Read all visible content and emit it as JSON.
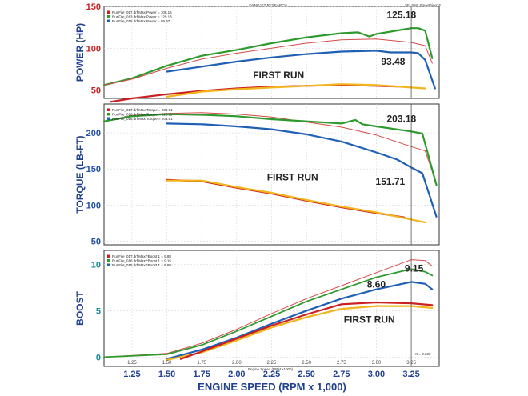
{
  "header": {
    "title": "DYNOJET RESEARCH",
    "right": "SF: SAE   Smoothing: 5"
  },
  "xaxis": {
    "label": "ENGINE SPEED (RPM x 1,000)",
    "inner_label": "Engine Speed (RPM x1000)",
    "ticks": [
      "1.25",
      "1.50",
      "1.75",
      "2.00",
      "2.25",
      "2.50",
      "2.75",
      "3.00",
      "3.25"
    ],
    "range": [
      1.05,
      3.45
    ],
    "cursor": 3.25,
    "cursor_readout": "X = 3.236"
  },
  "colors": {
    "green": "#2e9a2e",
    "blue": "#1f5fb4",
    "red": "#cc1f1f",
    "yellow": "#f2b51f",
    "thin_red": "#d24a4a",
    "cursor": "#555555"
  },
  "chart_data": [
    {
      "type": "line",
      "name": "power",
      "ylabel": "POWER (HP)",
      "yticks": [
        "150",
        "100",
        "50"
      ],
      "inner_tick_colors": "red",
      "ylim": [
        40,
        150
      ],
      "legend": [
        "RunFile_017.drf Max Power = 108.16",
        "RunFile_013.drf Max Power = 125.13",
        "RunFile_015.drf Max Power = 99.97"
      ],
      "annotations": [
        {
          "text": "125.18",
          "x": 3.18,
          "y": 136
        },
        {
          "text": "93.48",
          "x": 3.12,
          "y": 80
        },
        {
          "text": "FIRST RUN",
          "x": 2.3,
          "y": 64
        }
      ],
      "series": [
        {
          "color": "green",
          "width": 2.2,
          "points": [
            [
              1.05,
              56
            ],
            [
              1.25,
              64
            ],
            [
              1.5,
              79
            ],
            [
              1.75,
              91
            ],
            [
              2.0,
              98
            ],
            [
              2.25,
              106
            ],
            [
              2.5,
              113
            ],
            [
              2.75,
              118
            ],
            [
              2.87,
              119
            ],
            [
              2.95,
              114
            ],
            [
              3.0,
              117
            ],
            [
              3.25,
              124
            ],
            [
              3.3,
              124
            ],
            [
              3.35,
              121
            ],
            [
              3.4,
              88
            ]
          ]
        },
        {
          "color": "thin_red",
          "width": 1,
          "points": [
            [
              1.05,
              56
            ],
            [
              1.25,
              63
            ],
            [
              1.5,
              76
            ],
            [
              1.75,
              87
            ],
            [
              2.0,
              94
            ],
            [
              2.25,
              100
            ],
            [
              2.5,
              106
            ],
            [
              2.75,
              110
            ],
            [
              3.0,
              111
            ],
            [
              3.25,
              107
            ],
            [
              3.35,
              103
            ],
            [
              3.4,
              82
            ]
          ]
        },
        {
          "color": "blue",
          "width": 2.2,
          "points": [
            [
              1.5,
              72
            ],
            [
              1.75,
              78
            ],
            [
              2.0,
              84
            ],
            [
              2.25,
              89
            ],
            [
              2.5,
              93
            ],
            [
              2.75,
              96
            ],
            [
              3.0,
              97
            ],
            [
              3.1,
              95
            ],
            [
              3.25,
              95
            ],
            [
              3.3,
              94
            ],
            [
              3.35,
              86
            ],
            [
              3.42,
              52
            ]
          ]
        },
        {
          "color": "red",
          "width": 2.2,
          "points": [
            [
              1.1,
              36
            ],
            [
              1.25,
              40
            ],
            [
              1.5,
              45
            ],
            [
              1.75,
              49
            ],
            [
              2.0,
              52
            ],
            [
              2.25,
              54
            ],
            [
              2.5,
              55
            ],
            [
              2.75,
              56
            ],
            [
              3.0,
              55
            ],
            [
              3.2,
              54
            ]
          ]
        },
        {
          "color": "yellow",
          "width": 2.2,
          "points": [
            [
              1.5,
              42
            ],
            [
              1.75,
              48
            ],
            [
              2.0,
              51
            ],
            [
              2.25,
              53
            ],
            [
              2.5,
              55
            ],
            [
              2.75,
              57
            ],
            [
              3.0,
              56
            ],
            [
              3.25,
              53
            ],
            [
              3.35,
              52
            ]
          ]
        }
      ]
    },
    {
      "type": "line",
      "name": "torque",
      "ylabel": "TORQUE (LB-FT)",
      "yticks": [
        "200",
        "150",
        "100",
        "50"
      ],
      "ylim": [
        45,
        240
      ],
      "legend": [
        "RunFile_017.drf Max Torque = 230.81",
        "RunFile_016.drf Max Torque = 225.11",
        "RunFile_015.drf Max Torque = 201.61"
      ],
      "annotations": [
        {
          "text": "203.18",
          "x": 3.18,
          "y": 215
        },
        {
          "text": "151.71",
          "x": 3.1,
          "y": 128
        },
        {
          "text": "FIRST RUN",
          "x": 2.4,
          "y": 134
        }
      ],
      "series": [
        {
          "color": "thin_red",
          "width": 1,
          "points": [
            [
              1.05,
              216
            ],
            [
              1.25,
              224
            ],
            [
              1.5,
              227
            ],
            [
              1.75,
              228
            ],
            [
              2.0,
              226
            ],
            [
              2.25,
              222
            ],
            [
              2.5,
              215
            ],
            [
              2.75,
              208
            ],
            [
              3.0,
              197
            ],
            [
              3.25,
              181
            ],
            [
              3.35,
              175
            ],
            [
              3.42,
              136
            ]
          ]
        },
        {
          "color": "green",
          "width": 2.2,
          "points": [
            [
              1.05,
              216
            ],
            [
              1.25,
              223
            ],
            [
              1.5,
              226
            ],
            [
              1.75,
              225
            ],
            [
              2.0,
              223
            ],
            [
              2.25,
              219
            ],
            [
              2.5,
              216
            ],
            [
              2.75,
              213
            ],
            [
              2.85,
              218
            ],
            [
              2.9,
              212
            ],
            [
              3.0,
              209
            ],
            [
              3.25,
              202
            ],
            [
              3.33,
              199
            ],
            [
              3.43,
              128
            ]
          ]
        },
        {
          "color": "blue",
          "width": 2.2,
          "points": [
            [
              1.5,
              213
            ],
            [
              1.75,
              212
            ],
            [
              2.0,
              209
            ],
            [
              2.25,
              205
            ],
            [
              2.5,
              198
            ],
            [
              2.75,
              188
            ],
            [
              3.0,
              173
            ],
            [
              3.15,
              163
            ],
            [
              3.25,
              152
            ],
            [
              3.33,
              144
            ],
            [
              3.43,
              84
            ]
          ]
        },
        {
          "color": "red",
          "width": 2.2,
          "points": [
            [
              1.5,
              135
            ],
            [
              1.75,
              133
            ],
            [
              2.0,
              124
            ],
            [
              2.25,
              116
            ],
            [
              2.5,
              106
            ],
            [
              2.75,
              97
            ],
            [
              3.0,
              89
            ],
            [
              3.2,
              83
            ]
          ]
        },
        {
          "color": "yellow",
          "width": 2.2,
          "points": [
            [
              1.5,
              134
            ],
            [
              1.75,
              134
            ],
            [
              2.0,
              125
            ],
            [
              2.25,
              117
            ],
            [
              2.5,
              107
            ],
            [
              2.75,
              98
            ],
            [
              3.0,
              90
            ],
            [
              3.25,
              80
            ],
            [
              3.35,
              76
            ]
          ]
        }
      ]
    },
    {
      "type": "line",
      "name": "boost",
      "ylabel": "BOOST",
      "yticks": [
        "10",
        "5",
        "0"
      ],
      "ylim": [
        -1,
        11.5
      ],
      "legend": [
        "RunFile_017.drf Max *Boost 1 = 9.88",
        "RunFile_016.drf Max *Boost 1 = 9.15",
        "RunFile_015.drf Max *Boost 1 = 8.60"
      ],
      "annotations": [
        {
          "text": "9.15",
          "x": 3.27,
          "y": 9.2
        },
        {
          "text": "8.60",
          "x": 3.0,
          "y": 7.5
        },
        {
          "text": "FIRST RUN",
          "x": 2.95,
          "y": 3.7
        }
      ],
      "series": [
        {
          "color": "thin_red",
          "width": 1,
          "points": [
            [
              1.05,
              0
            ],
            [
              1.5,
              0.4
            ],
            [
              1.75,
              1.5
            ],
            [
              2.0,
              3.0
            ],
            [
              2.25,
              4.7
            ],
            [
              2.5,
              6.3
            ],
            [
              2.75,
              7.7
            ],
            [
              3.0,
              9.1
            ],
            [
              3.25,
              10.5
            ],
            [
              3.35,
              10.4
            ],
            [
              3.4,
              9.8
            ]
          ]
        },
        {
          "color": "green",
          "width": 1.8,
          "points": [
            [
              1.05,
              0
            ],
            [
              1.5,
              0.3
            ],
            [
              1.75,
              1.3
            ],
            [
              2.0,
              2.8
            ],
            [
              2.25,
              4.4
            ],
            [
              2.5,
              6.0
            ],
            [
              2.75,
              7.3
            ],
            [
              3.0,
              8.6
            ],
            [
              3.25,
              9.5
            ],
            [
              3.35,
              9.2
            ],
            [
              3.4,
              8.8
            ]
          ]
        },
        {
          "color": "blue",
          "width": 2.2,
          "points": [
            [
              1.5,
              -0.2
            ],
            [
              1.75,
              0.8
            ],
            [
              2.0,
              2.1
            ],
            [
              2.25,
              3.6
            ],
            [
              2.5,
              5.0
            ],
            [
              2.75,
              6.3
            ],
            [
              3.0,
              7.3
            ],
            [
              3.25,
              8.1
            ],
            [
              3.35,
              7.9
            ],
            [
              3.4,
              7.3
            ]
          ]
        },
        {
          "color": "yellow",
          "width": 2.2,
          "points": [
            [
              1.5,
              -0.3
            ],
            [
              1.75,
              0.5
            ],
            [
              2.0,
              1.8
            ],
            [
              2.25,
              3.2
            ],
            [
              2.5,
              4.3
            ],
            [
              2.75,
              5.2
            ],
            [
              3.0,
              5.5
            ],
            [
              3.25,
              5.5
            ],
            [
              3.4,
              5.3
            ]
          ]
        },
        {
          "color": "red",
          "width": 2.2,
          "points": [
            [
              1.6,
              -0.2
            ],
            [
              1.75,
              0.6
            ],
            [
              2.0,
              2.0
            ],
            [
              2.25,
              3.4
            ],
            [
              2.5,
              4.6
            ],
            [
              2.75,
              5.7
            ],
            [
              3.0,
              5.9
            ],
            [
              3.25,
              5.8
            ],
            [
              3.4,
              5.6
            ]
          ]
        }
      ]
    }
  ]
}
